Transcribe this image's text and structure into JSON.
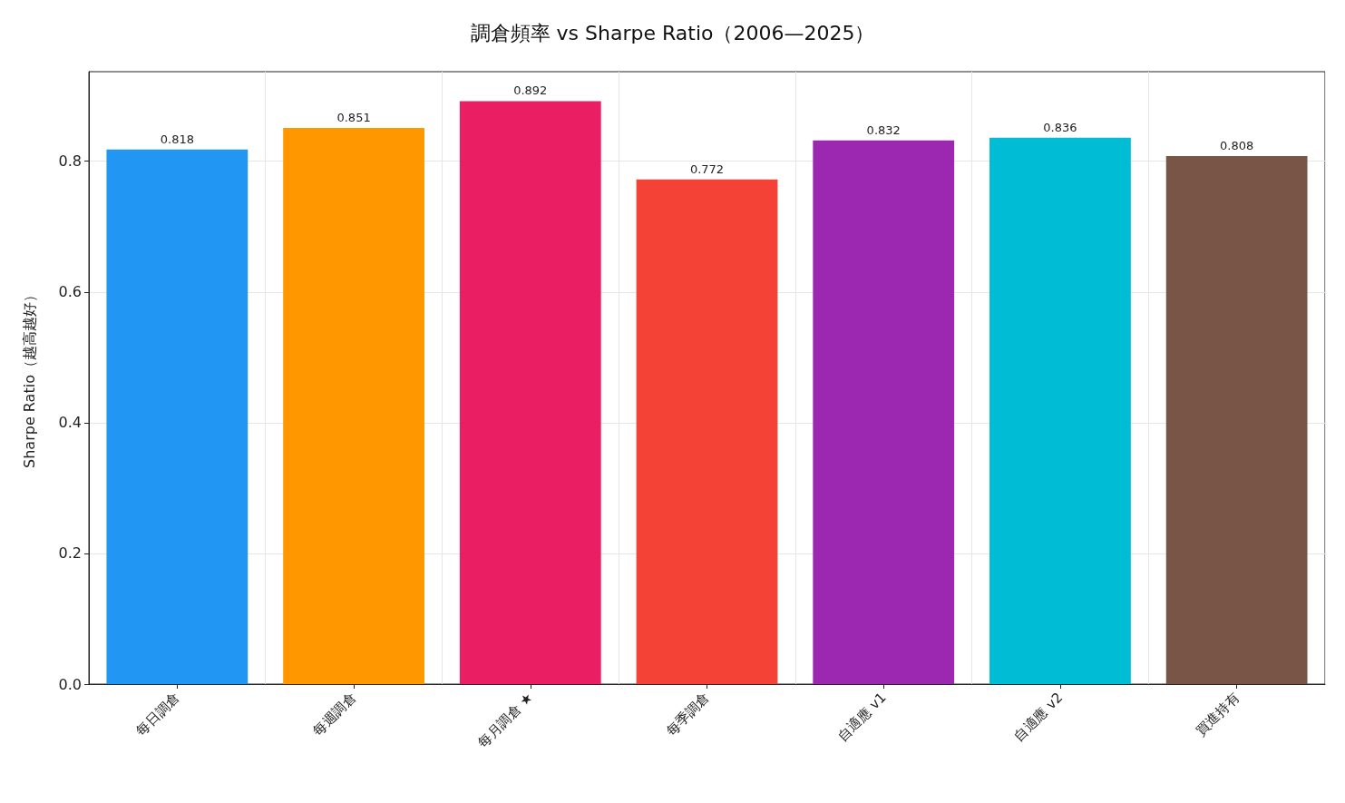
{
  "chart_data": {
    "type": "bar",
    "title": "調倉頻率 vs Sharpe Ratio（2006—2025）",
    "ylabel": "Sharpe Ratio（越高越好）",
    "categories": [
      "每日調倉",
      "每週調倉",
      "每月調倉 ★",
      "每季調倉",
      "自適應 v1",
      "自適應 v2",
      "買進持有"
    ],
    "values": [
      0.818,
      0.851,
      0.892,
      0.772,
      0.832,
      0.836,
      0.808
    ],
    "colors": [
      "#2196f3",
      "#ff9800",
      "#e91e63",
      "#f44336",
      "#9c27b0",
      "#00bcd4",
      "#795548"
    ],
    "ylim": [
      0,
      0.937
    ],
    "yticks": [
      {
        "value": 0,
        "label": "0.0"
      },
      {
        "value": 0.2,
        "label": "0.2"
      },
      {
        "value": 0.4,
        "label": "0.4"
      },
      {
        "value": 0.6,
        "label": "0.6"
      },
      {
        "value": 0.8,
        "label": "0.8"
      }
    ],
    "grid": true,
    "data_labels": true
  }
}
